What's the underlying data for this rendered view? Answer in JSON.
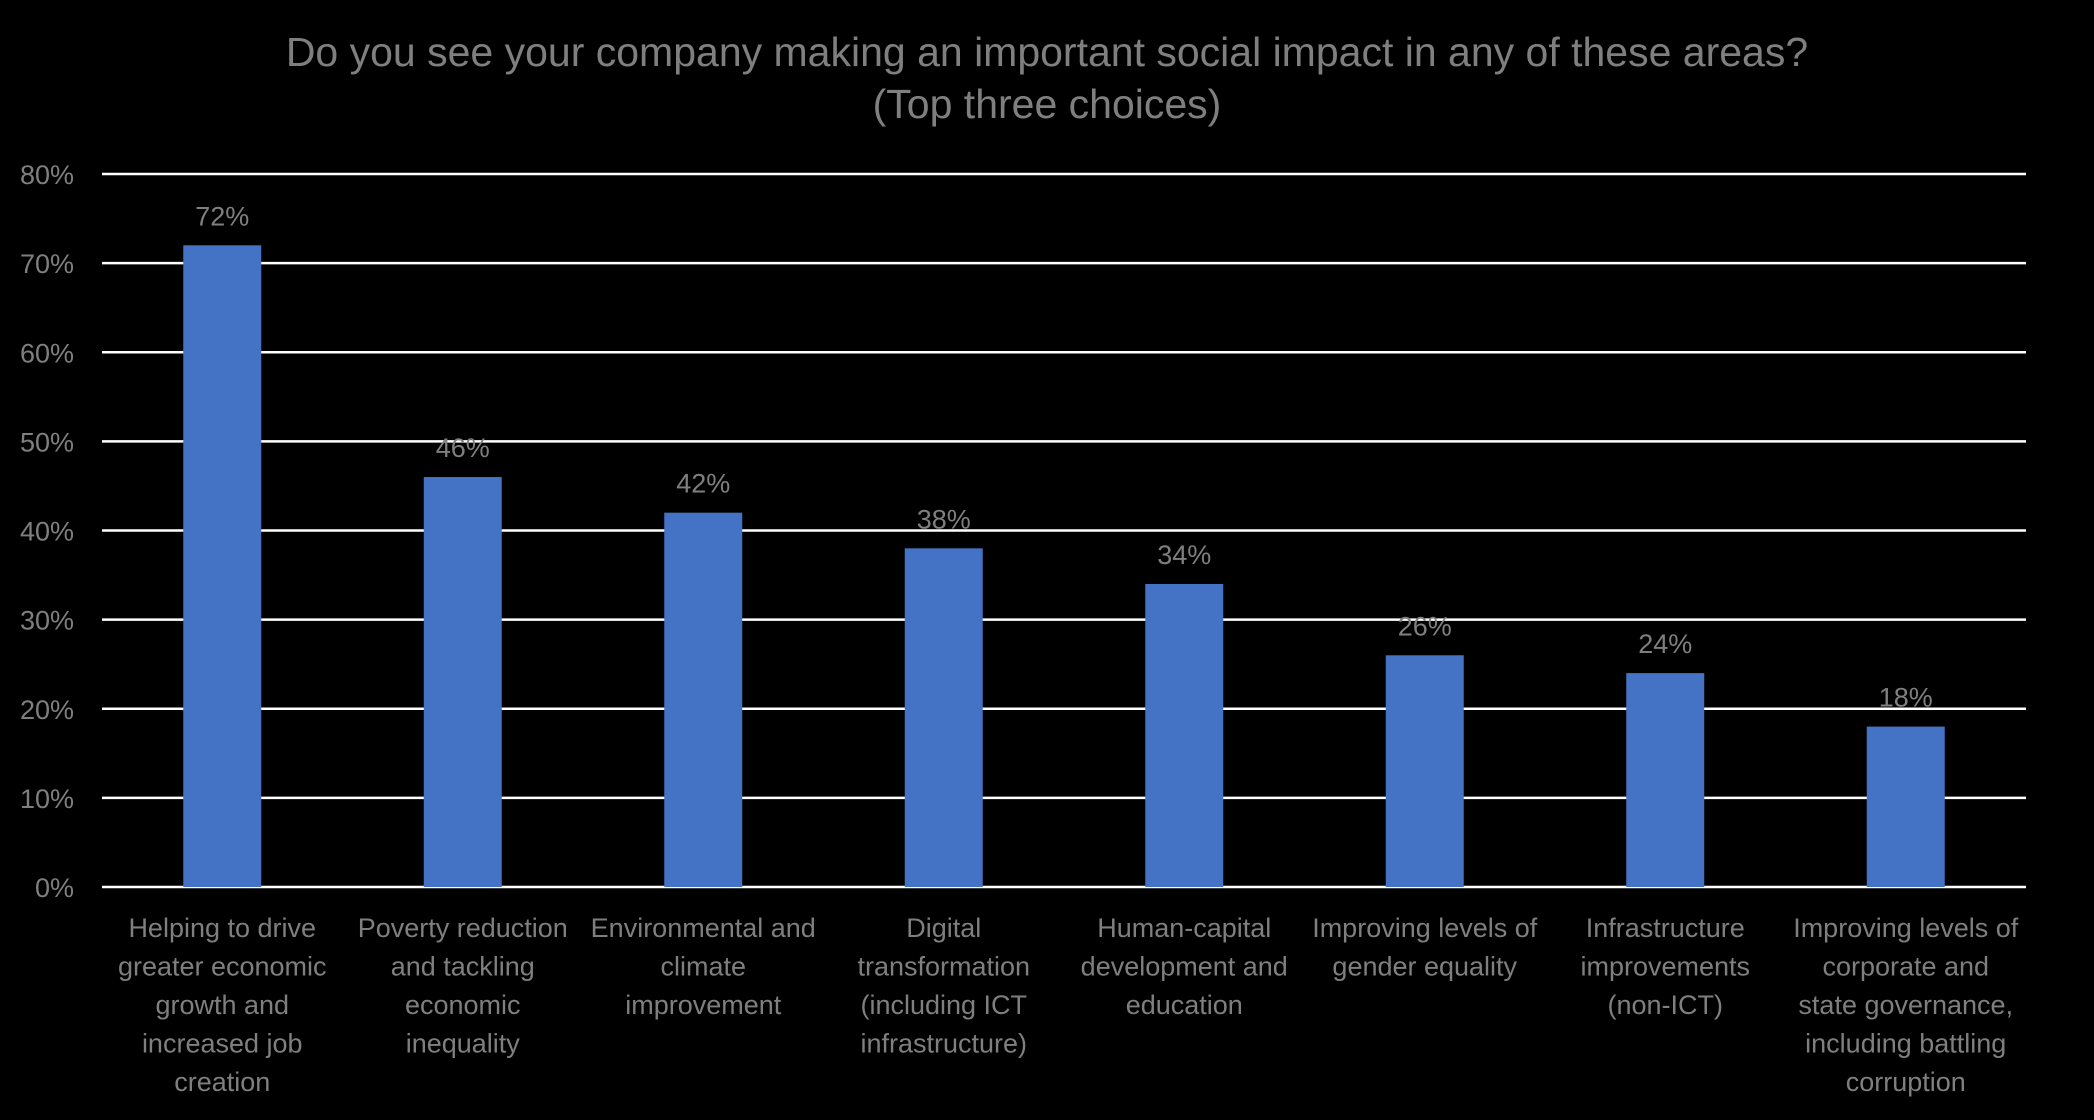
{
  "title_line1": "Do you see your company making an important social impact in any of these areas?",
  "title_line2": "(Top three choices)",
  "colors": {
    "background": "#000000",
    "bar": "#4472c4",
    "gridline": "#ffffff",
    "text": "#7f7f7f"
  },
  "chart_data": {
    "type": "bar",
    "title": "Do you see your company making an important social impact in any of these areas? (Top three choices)",
    "xlabel": "",
    "ylabel": "",
    "ylim": [
      0,
      80
    ],
    "ytick_step": 10,
    "yticks": [
      "0%",
      "10%",
      "20%",
      "30%",
      "40%",
      "50%",
      "60%",
      "70%",
      "80%"
    ],
    "grid": true,
    "categories": [
      [
        "Helping to drive",
        "greater economic",
        "growth and",
        "increased job",
        "creation"
      ],
      [
        "Poverty reduction",
        "and tackling",
        "economic",
        "inequality"
      ],
      [
        "Environmental and",
        "climate",
        "improvement"
      ],
      [
        "Digital",
        "transformation",
        "(including ICT",
        "infrastructure)"
      ],
      [
        "Human-capital",
        "development and",
        "education"
      ],
      [
        "Improving levels of",
        "gender equality"
      ],
      [
        "Infrastructure",
        "improvements",
        "(non-ICT)"
      ],
      [
        "Improving levels of",
        "corporate and",
        "state governance,",
        "including battling",
        "corruption"
      ]
    ],
    "values": [
      72,
      46,
      42,
      38,
      34,
      26,
      24,
      18
    ],
    "data_labels": [
      "72%",
      "46%",
      "42%",
      "38%",
      "34%",
      "26%",
      "24%",
      "18%"
    ]
  }
}
